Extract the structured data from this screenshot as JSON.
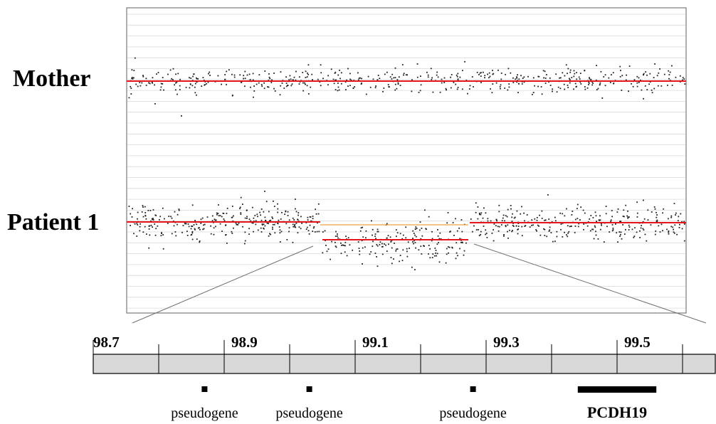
{
  "labels": {
    "mother": "Mother",
    "patient": "Patient 1"
  },
  "colors": {
    "segment": "#e8141c",
    "reference": "#f0a040",
    "points": "#222222",
    "grid": "#d8d8d8",
    "frame": "#7a7a7a",
    "bar_fill": "#d9d9d9",
    "zoom_lines": "#707070"
  },
  "scale": {
    "ticks": [
      {
        "value": 98.7,
        "label": "98.7"
      },
      {
        "value": 98.9,
        "label": "98.9"
      },
      {
        "value": 99.1,
        "label": "99.1"
      },
      {
        "value": 99.3,
        "label": "99.3"
      },
      {
        "value": 99.5,
        "label": "99.5"
      }
    ]
  },
  "features": [
    {
      "label": "pseudogene",
      "type": "point",
      "position": 98.87,
      "bold": false
    },
    {
      "label": "pseudogene",
      "type": "point",
      "position": 99.03,
      "bold": false
    },
    {
      "label": "pseudogene",
      "type": "point",
      "position": 99.28,
      "bold": false
    },
    {
      "label": "PCDH19",
      "type": "span",
      "start": 99.44,
      "end": 99.56,
      "bold": true
    }
  ]
}
